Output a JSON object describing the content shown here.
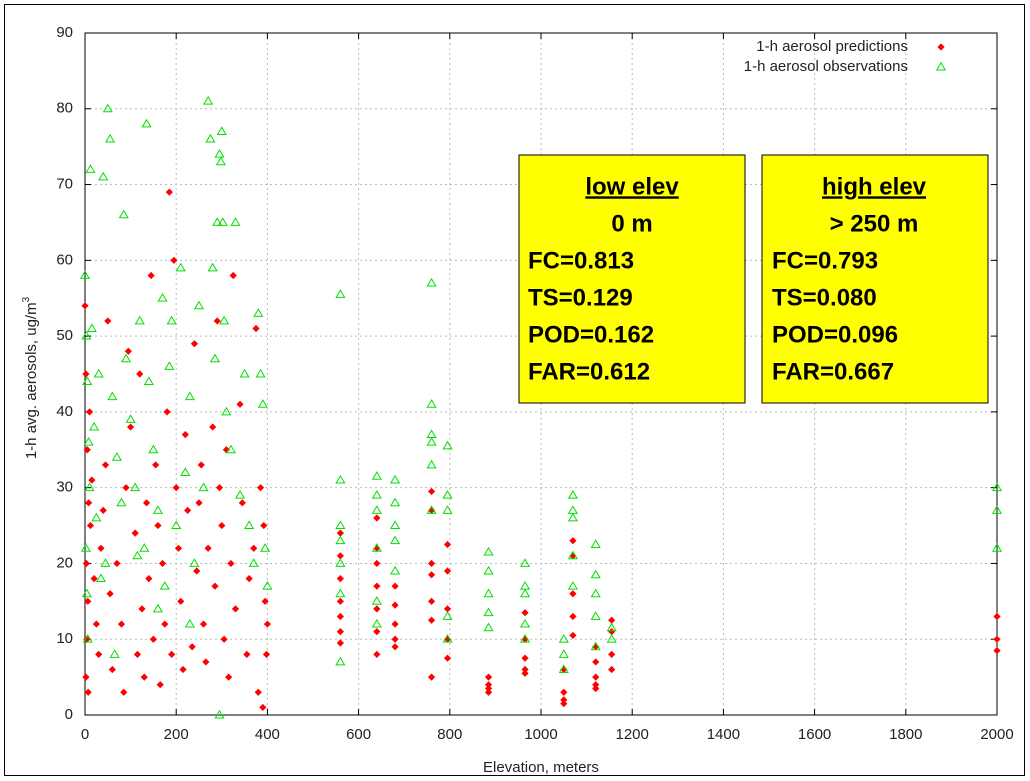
{
  "chart_data": {
    "type": "scatter",
    "xlabel": "Elevation, meters",
    "ylabel": "1-h avg. aerosols, ug/m",
    "ylabel_sup": "3",
    "xlim": [
      0,
      2000
    ],
    "ylim": [
      0,
      90
    ],
    "xticks": [
      0,
      200,
      400,
      600,
      800,
      1000,
      1200,
      1400,
      1600,
      1800,
      2000
    ],
    "yticks": [
      0,
      10,
      20,
      30,
      40,
      50,
      60,
      70,
      80,
      90
    ],
    "grid": true,
    "legend": "upper right",
    "series": [
      {
        "name": "1-h aerosol predictions",
        "color": "#ff0000",
        "marker": "diamond",
        "x": [
          2000,
          2000,
          2000,
          1155,
          1155,
          1155,
          1155,
          1120,
          1120,
          1120,
          1120,
          1120,
          1070,
          1070,
          1070,
          1070,
          1070,
          1050,
          1050,
          1050,
          1050,
          965,
          965,
          965,
          965,
          965,
          885,
          885,
          885,
          885,
          795,
          795,
          795,
          795,
          795,
          760,
          760,
          760,
          760,
          760,
          760,
          760,
          680,
          680,
          680,
          680,
          680,
          640,
          640,
          640,
          640,
          640,
          640,
          640,
          560,
          560,
          560,
          560,
          560,
          560,
          560,
          0,
          2,
          5,
          8,
          10,
          3,
          6,
          4,
          2,
          7,
          12,
          15,
          20,
          25,
          30,
          35,
          40,
          45,
          50,
          55,
          60,
          70,
          80,
          85,
          90,
          95,
          100,
          110,
          115,
          120,
          125,
          130,
          135,
          140,
          145,
          150,
          155,
          160,
          165,
          170,
          175,
          180,
          185,
          190,
          195,
          200,
          205,
          210,
          215,
          220,
          225,
          235,
          240,
          245,
          250,
          255,
          260,
          265,
          270,
          280,
          285,
          290,
          295,
          300,
          305,
          310,
          315,
          320,
          325,
          330,
          340,
          345,
          355,
          360,
          370,
          375,
          380,
          385,
          390,
          395,
          400,
          398,
          392
        ],
        "values": [
          13,
          10,
          8.5,
          12.5,
          11,
          8,
          6,
          9,
          7,
          5,
          4,
          3.5,
          23,
          21,
          16,
          13,
          10.5,
          6,
          3,
          2,
          1.5,
          13.5,
          10,
          7.5,
          6,
          5.5,
          5,
          4,
          3.5,
          3,
          22.5,
          19,
          14,
          10,
          7.5,
          29.5,
          27,
          20,
          18.5,
          15,
          12.5,
          5,
          17,
          14.5,
          12,
          10,
          9,
          26,
          22,
          20,
          17,
          14,
          11,
          8,
          24,
          21,
          18,
          15,
          13,
          11,
          9.5,
          54,
          45,
          35,
          28,
          40,
          20,
          15,
          10,
          5,
          3,
          25,
          31,
          18,
          12,
          8,
          22,
          27,
          33,
          52,
          16,
          6,
          20,
          12,
          3,
          30,
          48,
          38,
          24,
          8,
          45,
          14,
          5,
          28,
          18,
          58,
          10,
          33,
          25,
          4,
          20,
          12,
          40,
          69,
          8,
          60,
          30,
          22,
          15,
          6,
          37,
          27,
          9,
          49,
          19,
          28,
          33,
          12,
          7,
          22,
          38,
          17,
          52,
          30,
          25,
          10,
          35,
          5,
          20,
          58,
          14,
          41,
          28,
          8,
          18,
          22,
          51,
          3,
          30,
          1,
          15,
          12,
          8,
          25
        ]
      },
      {
        "name": "1-h aerosol observations",
        "color": "#00e000",
        "marker": "triangle",
        "x": [
          2000,
          2000,
          2000,
          1155,
          1155,
          1120,
          1120,
          1120,
          1120,
          1120,
          1070,
          1070,
          1070,
          1070,
          1070,
          1050,
          1050,
          1050,
          965,
          965,
          965,
          965,
          965,
          885,
          885,
          885,
          885,
          885,
          795,
          795,
          795,
          795,
          795,
          760,
          760,
          760,
          760,
          760,
          760,
          680,
          680,
          680,
          680,
          680,
          640,
          640,
          640,
          640,
          640,
          640,
          560,
          560,
          560,
          560,
          560,
          560,
          560,
          0,
          3,
          5,
          8,
          10,
          2,
          4,
          6,
          12,
          15,
          20,
          25,
          30,
          35,
          40,
          45,
          50,
          55,
          60,
          70,
          80,
          85,
          90,
          100,
          110,
          120,
          130,
          135,
          140,
          150,
          160,
          170,
          175,
          185,
          190,
          200,
          210,
          220,
          230,
          240,
          250,
          270,
          275,
          280,
          285,
          290,
          295,
          298,
          300,
          302,
          305,
          310,
          320,
          330,
          340,
          350,
          360,
          370,
          380,
          385,
          390,
          395,
          400,
          295,
          260,
          230,
          160,
          115,
          65
        ],
        "values": [
          30,
          27,
          22,
          11.5,
          10,
          22.5,
          18.5,
          16,
          13,
          9,
          29,
          27,
          26,
          21,
          17,
          10,
          8,
          6,
          20,
          17,
          16,
          12,
          10,
          21.5,
          19,
          16,
          13.5,
          11.5,
          35.5,
          29,
          27,
          13,
          10,
          57,
          41,
          37,
          36,
          33,
          27,
          31,
          28,
          25,
          23,
          19,
          31.5,
          29,
          27,
          22,
          15,
          12,
          55.5,
          31,
          25,
          23,
          20,
          16,
          7,
          58,
          50,
          44,
          36,
          30,
          22,
          16,
          10,
          72,
          51,
          38,
          26,
          45,
          18,
          71,
          20,
          80,
          76,
          42,
          34,
          28,
          66,
          47,
          39,
          30,
          52,
          22,
          78,
          44,
          35,
          27,
          55,
          17,
          46,
          52,
          25,
          59,
          32,
          42,
          20,
          54,
          81,
          76,
          59,
          47,
          65,
          74,
          73,
          77,
          65,
          52,
          40,
          35,
          65,
          29,
          45,
          25,
          20,
          53,
          45,
          41,
          22,
          17,
          0,
          30,
          12,
          14,
          21,
          8
        ]
      }
    ],
    "annotations": [
      {
        "lines": [
          "low elev",
          "0 m",
          "FC=0.813",
          "TS=0.129",
          "POD=0.162",
          "FAR=0.612"
        ]
      },
      {
        "lines": [
          "high elev",
          "> 250 m",
          "FC=0.793",
          "TS=0.080",
          "POD=0.096",
          "FAR=0.667"
        ]
      }
    ]
  }
}
